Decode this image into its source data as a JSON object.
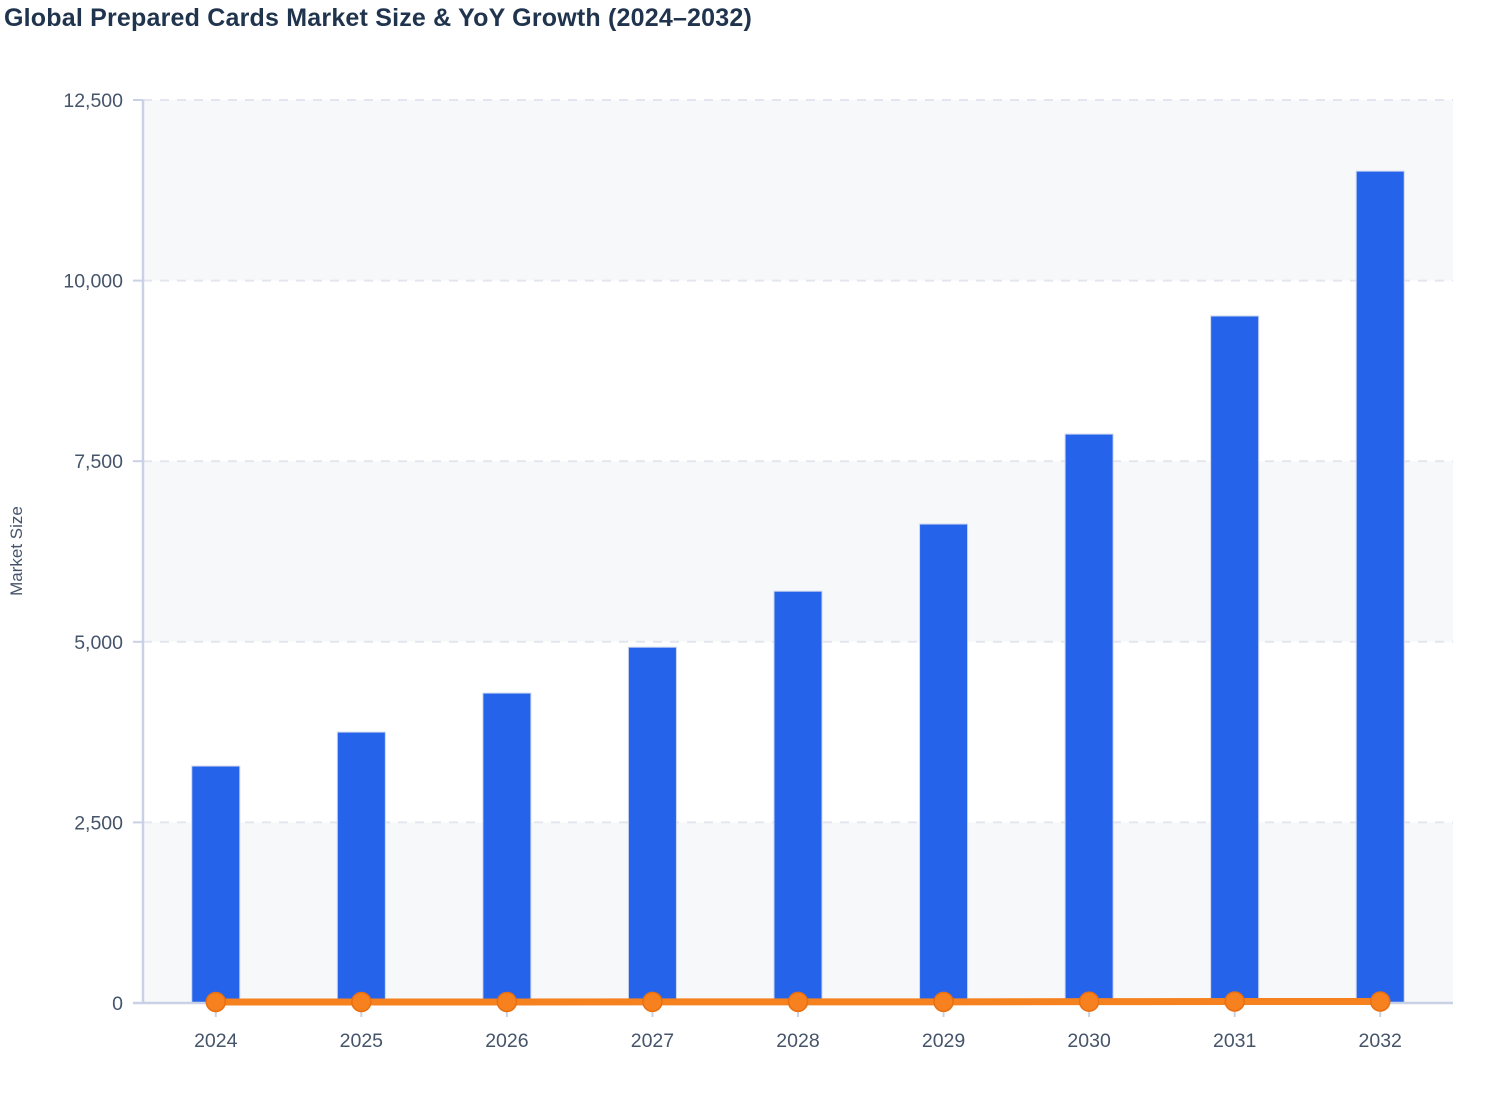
{
  "page": {
    "title": "Global Prepared Cards Market Size & YoY Growth (2024–2032)"
  },
  "colors": {
    "bar": "#2563eb",
    "bar_outline": "#ccd5ee",
    "line": "#f5821f",
    "marker_fill": "#f6811e",
    "marker_stroke": "#e96f10",
    "axis_line": "#c9d1e6",
    "gridline": "#e3e6ee",
    "band_fill": "#f7f8fa",
    "title_text": "#20344e",
    "tick_text": "#45546a"
  },
  "chart_data": {
    "type": "bar",
    "combo_types": [
      "bar",
      "line"
    ],
    "title": "Global Prepared Cards Market Size & YoY Growth (2024–2032)",
    "xlabel": "",
    "ylabel": "Market Size",
    "categories": [
      "2024",
      "2025",
      "2026",
      "2027",
      "2028",
      "2029",
      "2030",
      "2031",
      "2032"
    ],
    "series": [
      {
        "name": "Market Size",
        "type": "bar",
        "color": "#2563eb",
        "values": [
          3280,
          3750,
          4290,
          4925,
          5700,
          6630,
          7875,
          9510,
          11515
        ]
      },
      {
        "name": "YoY Growth",
        "type": "line",
        "color": "#f5821f",
        "values": [
          14,
          14.3,
          14.4,
          14.8,
          15.7,
          16.3,
          18.8,
          20.8,
          21.1
        ]
      }
    ],
    "ylim": [
      0,
      12500
    ],
    "ytick_step": 2500,
    "ytick_labels": [
      "0",
      "2,500",
      "5,000",
      "7,500",
      "10,000",
      "12,500"
    ],
    "grid": "horizontal-dashed",
    "alternating_horizontal_bands": true,
    "legend_position": "none"
  }
}
